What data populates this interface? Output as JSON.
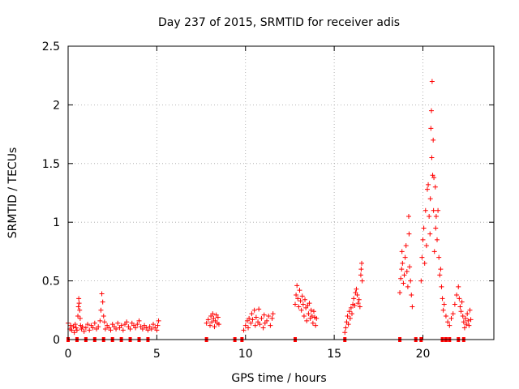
{
  "chart_data": {
    "type": "scatter",
    "title": "Day 237 of 2015, SRMTID for receiver adis",
    "xlabel": "GPS time / hours",
    "ylabel": "SRMTID / TECUs",
    "xlim": [
      0,
      24
    ],
    "ylim": [
      0,
      2.5
    ],
    "x_ticks": [
      0,
      5,
      10,
      15,
      20
    ],
    "y_ticks": [
      0,
      0.5,
      1,
      1.5,
      2,
      2.5
    ],
    "x_tick_labels": [
      "0",
      "5",
      "10",
      "15",
      "20"
    ],
    "y_tick_labels": [
      "0",
      "0.5",
      "1",
      "1.5",
      "2",
      "2.5"
    ],
    "grid": true,
    "marker": "+",
    "series": [
      {
        "name": "SRMTID",
        "color": "#ff0000",
        "points": [
          [
            0.0,
            0.14
          ],
          [
            0.1,
            0.09
          ],
          [
            0.15,
            0.12
          ],
          [
            0.2,
            0.08
          ],
          [
            0.3,
            0.11
          ],
          [
            0.35,
            0.06
          ],
          [
            0.4,
            0.13
          ],
          [
            0.45,
            0.1
          ],
          [
            0.5,
            0.08
          ],
          [
            0.55,
            0.2
          ],
          [
            0.58,
            0.28
          ],
          [
            0.6,
            0.35
          ],
          [
            0.62,
            0.31
          ],
          [
            0.65,
            0.25
          ],
          [
            0.68,
            0.18
          ],
          [
            0.7,
            0.12
          ],
          [
            0.75,
            0.09
          ],
          [
            0.8,
            0.11
          ],
          [
            0.9,
            0.07
          ],
          [
            1.0,
            0.1
          ],
          [
            1.1,
            0.13
          ],
          [
            1.2,
            0.08
          ],
          [
            1.3,
            0.12
          ],
          [
            1.4,
            0.1
          ],
          [
            1.5,
            0.14
          ],
          [
            1.6,
            0.09
          ],
          [
            1.7,
            0.11
          ],
          [
            1.8,
            0.16
          ],
          [
            1.85,
            0.25
          ],
          [
            1.9,
            0.39
          ],
          [
            1.95,
            0.32
          ],
          [
            2.0,
            0.2
          ],
          [
            2.05,
            0.15
          ],
          [
            2.1,
            0.09
          ],
          [
            2.2,
            0.12
          ],
          [
            2.3,
            0.1
          ],
          [
            2.4,
            0.08
          ],
          [
            2.5,
            0.13
          ],
          [
            2.6,
            0.11
          ],
          [
            2.7,
            0.09
          ],
          [
            2.8,
            0.14
          ],
          [
            2.9,
            0.1
          ],
          [
            3.0,
            0.12
          ],
          [
            3.1,
            0.08
          ],
          [
            3.2,
            0.13
          ],
          [
            3.3,
            0.15
          ],
          [
            3.4,
            0.11
          ],
          [
            3.5,
            0.09
          ],
          [
            3.6,
            0.14
          ],
          [
            3.7,
            0.12
          ],
          [
            3.8,
            0.1
          ],
          [
            3.9,
            0.13
          ],
          [
            4.0,
            0.16
          ],
          [
            4.1,
            0.11
          ],
          [
            4.2,
            0.09
          ],
          [
            4.3,
            0.12
          ],
          [
            4.4,
            0.1
          ],
          [
            4.5,
            0.08
          ],
          [
            4.6,
            0.11
          ],
          [
            4.7,
            0.09
          ],
          [
            4.8,
            0.13
          ],
          [
            4.9,
            0.1
          ],
          [
            5.0,
            0.08
          ],
          [
            5.05,
            0.12
          ],
          [
            5.1,
            0.16
          ],
          [
            7.8,
            0.14
          ],
          [
            7.9,
            0.17
          ],
          [
            8.0,
            0.12
          ],
          [
            8.05,
            0.2
          ],
          [
            8.1,
            0.15
          ],
          [
            8.15,
            0.22
          ],
          [
            8.2,
            0.18
          ],
          [
            8.25,
            0.11
          ],
          [
            8.3,
            0.16
          ],
          [
            8.35,
            0.21
          ],
          [
            8.4,
            0.14
          ],
          [
            8.45,
            0.19
          ],
          [
            8.5,
            0.13
          ],
          [
            9.9,
            0.08
          ],
          [
            10.0,
            0.12
          ],
          [
            10.1,
            0.16
          ],
          [
            10.15,
            0.1
          ],
          [
            10.2,
            0.18
          ],
          [
            10.3,
            0.14
          ],
          [
            10.35,
            0.22
          ],
          [
            10.4,
            0.17
          ],
          [
            10.5,
            0.25
          ],
          [
            10.55,
            0.12
          ],
          [
            10.6,
            0.19
          ],
          [
            10.7,
            0.15
          ],
          [
            10.75,
            0.26
          ],
          [
            10.8,
            0.13
          ],
          [
            10.9,
            0.18
          ],
          [
            11.0,
            0.1
          ],
          [
            11.05,
            0.21
          ],
          [
            11.1,
            0.14
          ],
          [
            11.2,
            0.16
          ],
          [
            11.3,
            0.2
          ],
          [
            11.4,
            0.12
          ],
          [
            11.5,
            0.18
          ],
          [
            11.55,
            0.22
          ],
          [
            12.8,
            0.3
          ],
          [
            12.85,
            0.38
          ],
          [
            12.9,
            0.46
          ],
          [
            12.95,
            0.35
          ],
          [
            13.0,
            0.28
          ],
          [
            13.05,
            0.42
          ],
          [
            13.1,
            0.33
          ],
          [
            13.15,
            0.25
          ],
          [
            13.2,
            0.37
          ],
          [
            13.25,
            0.3
          ],
          [
            13.3,
            0.2
          ],
          [
            13.35,
            0.34
          ],
          [
            13.4,
            0.27
          ],
          [
            13.45,
            0.16
          ],
          [
            13.5,
            0.29
          ],
          [
            13.55,
            0.22
          ],
          [
            13.6,
            0.31
          ],
          [
            13.65,
            0.18
          ],
          [
            13.7,
            0.25
          ],
          [
            13.75,
            0.2
          ],
          [
            13.8,
            0.14
          ],
          [
            13.85,
            0.24
          ],
          [
            13.9,
            0.19
          ],
          [
            13.95,
            0.12
          ],
          [
            14.0,
            0.18
          ],
          [
            15.6,
            0.06
          ],
          [
            15.65,
            0.1
          ],
          [
            15.7,
            0.15
          ],
          [
            15.75,
            0.2
          ],
          [
            15.8,
            0.13
          ],
          [
            15.85,
            0.24
          ],
          [
            15.9,
            0.18
          ],
          [
            15.95,
            0.27
          ],
          [
            16.0,
            0.22
          ],
          [
            16.05,
            0.3
          ],
          [
            16.1,
            0.35
          ],
          [
            16.15,
            0.29
          ],
          [
            16.2,
            0.4
          ],
          [
            16.25,
            0.43
          ],
          [
            16.3,
            0.38
          ],
          [
            16.35,
            0.31
          ],
          [
            16.4,
            0.34
          ],
          [
            16.45,
            0.28
          ],
          [
            16.5,
            0.55
          ],
          [
            16.52,
            0.6
          ],
          [
            16.55,
            0.65
          ],
          [
            16.58,
            0.5
          ],
          [
            18.7,
            0.4
          ],
          [
            18.75,
            0.52
          ],
          [
            18.8,
            0.6
          ],
          [
            18.82,
            0.75
          ],
          [
            18.85,
            0.65
          ],
          [
            18.9,
            0.48
          ],
          [
            18.95,
            0.55
          ],
          [
            19.0,
            0.7
          ],
          [
            19.05,
            0.8
          ],
          [
            19.1,
            0.58
          ],
          [
            19.15,
            0.45
          ],
          [
            19.2,
            1.05
          ],
          [
            19.22,
            0.9
          ],
          [
            19.25,
            0.62
          ],
          [
            19.3,
            0.5
          ],
          [
            19.35,
            0.38
          ],
          [
            19.4,
            0.28
          ],
          [
            19.9,
            0.5
          ],
          [
            19.95,
            0.7
          ],
          [
            20.0,
            0.85
          ],
          [
            20.05,
            0.95
          ],
          [
            20.1,
            0.65
          ],
          [
            20.15,
            1.1
          ],
          [
            20.2,
            0.8
          ],
          [
            20.25,
            1.28
          ],
          [
            20.3,
            1.32
          ],
          [
            20.35,
            1.05
          ],
          [
            20.4,
            0.9
          ],
          [
            20.42,
            1.2
          ],
          [
            20.45,
            1.8
          ],
          [
            20.48,
            1.95
          ],
          [
            20.5,
            1.55
          ],
          [
            20.52,
            2.2
          ],
          [
            20.55,
            1.4
          ],
          [
            20.58,
            1.7
          ],
          [
            20.6,
            1.1
          ],
          [
            20.62,
            1.38
          ],
          [
            20.65,
            0.75
          ],
          [
            20.7,
            1.3
          ],
          [
            20.72,
            0.95
          ],
          [
            20.75,
            1.05
          ],
          [
            20.8,
            0.85
          ],
          [
            20.85,
            1.1
          ],
          [
            20.9,
            0.7
          ],
          [
            20.95,
            0.55
          ],
          [
            21.0,
            0.6
          ],
          [
            21.05,
            0.45
          ],
          [
            21.1,
            0.35
          ],
          [
            21.15,
            0.25
          ],
          [
            21.2,
            0.3
          ],
          [
            21.3,
            0.2
          ],
          [
            21.4,
            0.15
          ],
          [
            21.5,
            0.12
          ],
          [
            21.6,
            0.18
          ],
          [
            21.7,
            0.22
          ],
          [
            21.8,
            0.3
          ],
          [
            21.9,
            0.38
          ],
          [
            22.0,
            0.45
          ],
          [
            22.05,
            0.35
          ],
          [
            22.1,
            0.28
          ],
          [
            22.15,
            0.24
          ],
          [
            22.2,
            0.32
          ],
          [
            22.25,
            0.2
          ],
          [
            22.3,
            0.15
          ],
          [
            22.35,
            0.1
          ],
          [
            22.4,
            0.18
          ],
          [
            22.45,
            0.13
          ],
          [
            22.5,
            0.22
          ],
          [
            22.55,
            0.16
          ],
          [
            22.6,
            0.12
          ],
          [
            22.65,
            0.25
          ],
          [
            22.7,
            0.17
          ]
        ]
      }
    ],
    "zero_markers": [
      [
        0.0,
        0.0
      ],
      [
        0.5,
        0.0
      ],
      [
        1.0,
        0.0
      ],
      [
        1.5,
        0.0
      ],
      [
        2.0,
        0.0
      ],
      [
        2.5,
        0.0
      ],
      [
        3.0,
        0.0
      ],
      [
        3.5,
        0.0
      ],
      [
        4.0,
        0.0
      ],
      [
        4.5,
        0.0
      ],
      [
        7.8,
        0.0
      ],
      [
        9.4,
        0.0
      ],
      [
        9.8,
        0.0
      ],
      [
        12.8,
        0.0
      ],
      [
        15.6,
        0.0
      ],
      [
        18.7,
        0.0
      ],
      [
        19.6,
        0.0
      ],
      [
        19.9,
        0.0
      ],
      [
        21.1,
        0.0
      ],
      [
        21.3,
        0.0
      ],
      [
        21.5,
        0.0
      ],
      [
        22.0,
        0.0
      ],
      [
        22.3,
        0.0
      ]
    ]
  }
}
